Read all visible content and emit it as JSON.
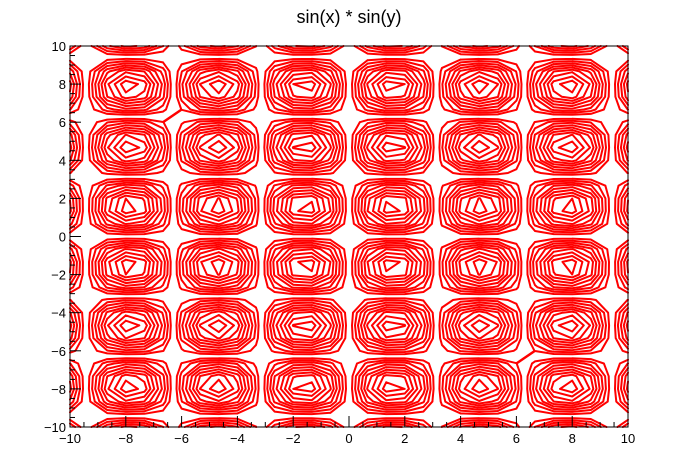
{
  "chart_data": {
    "type": "contour",
    "title": "sin(x) * sin(y)",
    "function": "sin(x) * sin(y)",
    "xlim": [
      -10,
      10
    ],
    "ylim": [
      -10,
      10
    ],
    "xticks": [
      -10,
      -8,
      -6,
      -4,
      -2,
      0,
      2,
      4,
      6,
      8,
      10
    ],
    "yticks": [
      -10,
      -8,
      -6,
      -4,
      -2,
      0,
      2,
      4,
      6,
      8,
      10
    ],
    "xtick_labels": [
      "−10",
      "−8",
      "−6",
      "−4",
      "−2",
      "0",
      "2",
      "4",
      "6",
      "8",
      "10"
    ],
    "ytick_labels": [
      "−10",
      "−8",
      "−6",
      "−4",
      "−2",
      "0",
      "2",
      "4",
      "6",
      "8",
      "10"
    ],
    "contour_levels": [
      -0.9,
      -0.8,
      -0.7,
      -0.6,
      -0.5,
      -0.4,
      -0.3,
      -0.2,
      -0.1,
      0.1,
      0.2,
      0.3,
      0.4,
      0.5,
      0.6,
      0.7,
      0.8,
      0.9
    ],
    "grid_steps": 30,
    "line_color": "#ff0000",
    "grid": false
  }
}
